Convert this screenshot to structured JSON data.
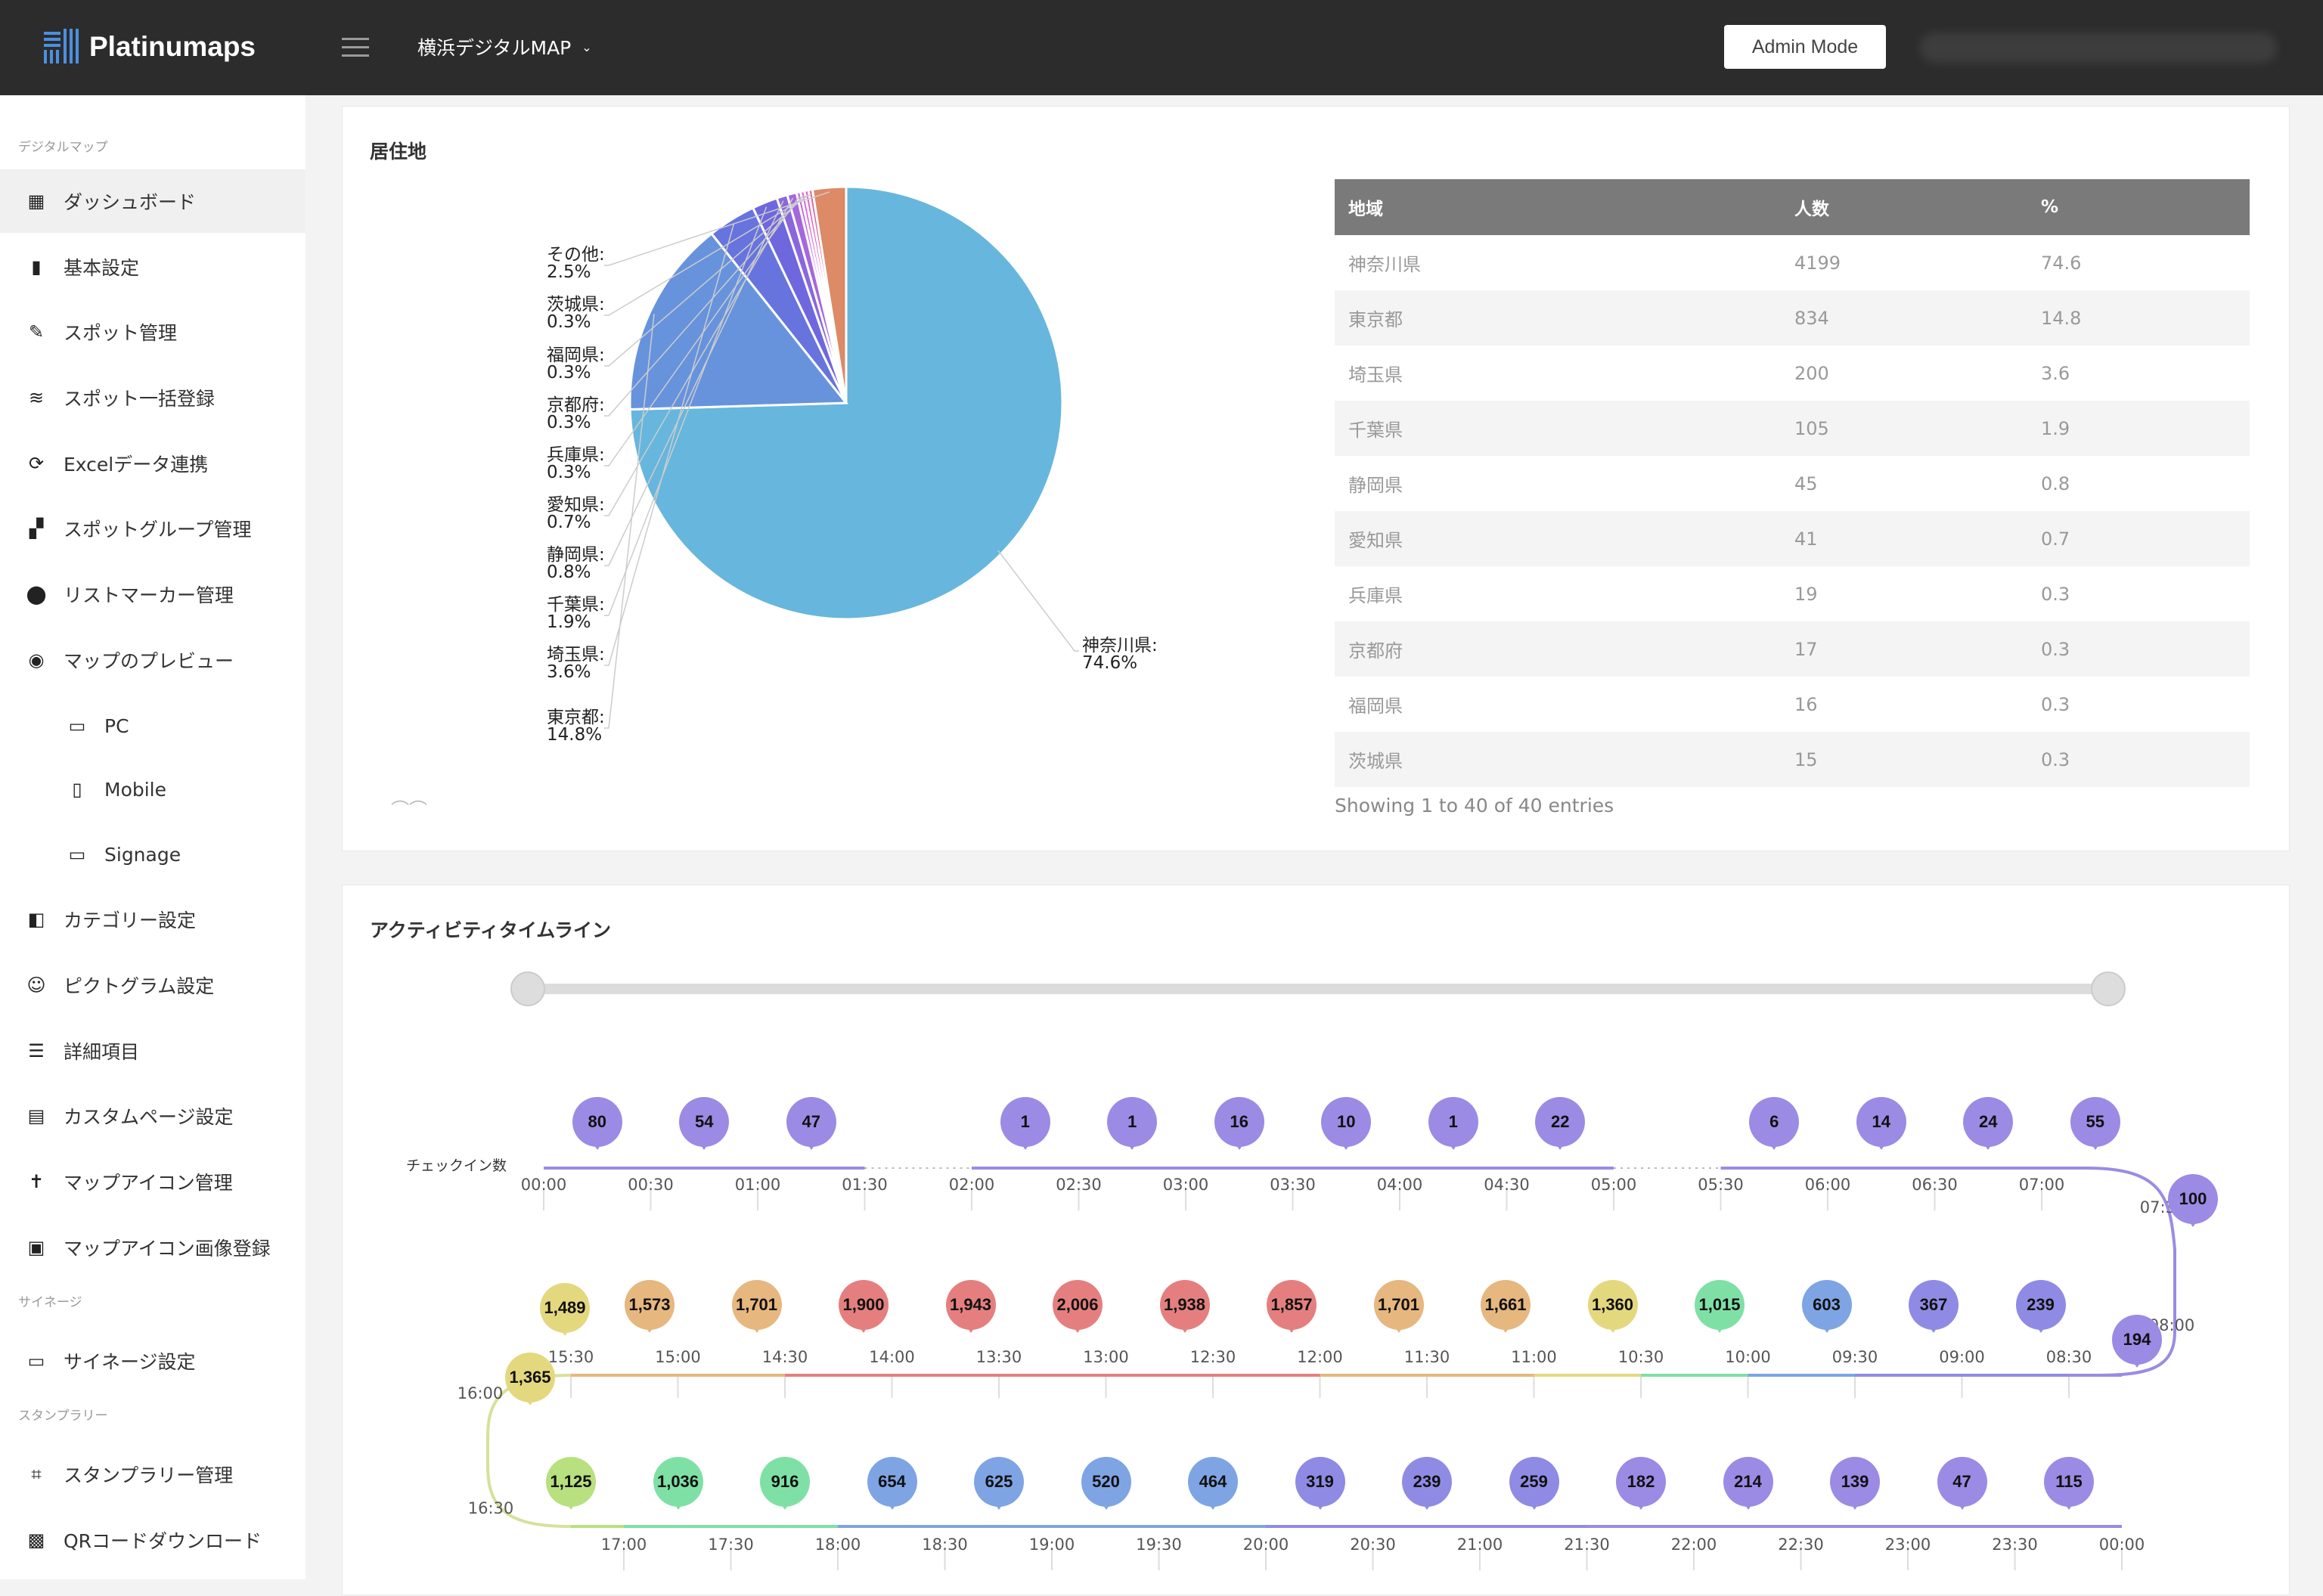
{
  "header": {
    "app_name": "Platinumaps",
    "map_name": "横浜デジタルMAP",
    "admin_button": "Admin Mode"
  },
  "sidebar": {
    "sections": [
      "デジタルマップ",
      "サイネージ",
      "スタンプラリー"
    ],
    "items": [
      {
        "label": "ダッシュボード",
        "icon": "dashboard-icon",
        "glyph": "▦",
        "active": true
      },
      {
        "label": "基本設定",
        "icon": "map-icon",
        "glyph": "▮"
      },
      {
        "label": "スポット管理",
        "icon": "spot-edit-icon",
        "glyph": "✎"
      },
      {
        "label": "スポット一括登録",
        "icon": "layers-icon",
        "glyph": "≋"
      },
      {
        "label": "Excelデータ連携",
        "icon": "sync-icon",
        "glyph": "⟳"
      },
      {
        "label": "スポットグループ管理",
        "icon": "widgets-icon",
        "glyph": "▞"
      },
      {
        "label": "リストマーカー管理",
        "icon": "location-icon",
        "glyph": "⬤"
      },
      {
        "label": "マップのプレビュー",
        "icon": "eye-icon",
        "glyph": "◉"
      },
      {
        "label": "PC",
        "icon": "desktop-icon",
        "glyph": "▭",
        "sub": true
      },
      {
        "label": "Mobile",
        "icon": "mobile-icon",
        "glyph": "▯",
        "sub": true
      },
      {
        "label": "Signage",
        "icon": "monitor-icon",
        "glyph": "▭",
        "sub": true
      },
      {
        "label": "カテゴリー設定",
        "icon": "category-icon",
        "glyph": "◧"
      },
      {
        "label": "ピクトグラム設定",
        "icon": "pictogram-icon",
        "glyph": "☺"
      },
      {
        "label": "詳細項目",
        "icon": "list-icon",
        "glyph": "☰"
      },
      {
        "label": "カスタムページ設定",
        "icon": "page-icon",
        "glyph": "▤"
      },
      {
        "label": "マップアイコン管理",
        "icon": "pin-icon",
        "glyph": "✝"
      },
      {
        "label": "マップアイコン画像登録",
        "icon": "image-icon",
        "glyph": "▣"
      },
      {
        "label": "サイネージ設定",
        "icon": "signage-icon",
        "glyph": "▭"
      },
      {
        "label": "スタンプラリー管理",
        "icon": "stamp-icon",
        "glyph": "⌗"
      },
      {
        "label": "QRコードダウンロード",
        "icon": "qr-icon",
        "glyph": "▩"
      }
    ]
  },
  "residence": {
    "title": "居住地",
    "table_headers": [
      "地域",
      "人数",
      "%"
    ],
    "rows": [
      [
        "神奈川県",
        "4199",
        "74.6"
      ],
      [
        "東京都",
        "834",
        "14.8"
      ],
      [
        "埼玉県",
        "200",
        "3.6"
      ],
      [
        "千葉県",
        "105",
        "1.9"
      ],
      [
        "静岡県",
        "45",
        "0.8"
      ],
      [
        "愛知県",
        "41",
        "0.7"
      ],
      [
        "兵庫県",
        "19",
        "0.3"
      ],
      [
        "京都府",
        "17",
        "0.3"
      ],
      [
        "福岡県",
        "16",
        "0.3"
      ],
      [
        "茨城県",
        "15",
        "0.3"
      ]
    ],
    "table_info": "Showing 1 to 40 of 40 entries"
  },
  "chart_data": {
    "type": "pie",
    "slices": [
      {
        "label": "神奈川県:",
        "pct_label": "74.6%",
        "value": 74.6,
        "color": "#67b6dd"
      },
      {
        "label": "東京都:",
        "pct_label": "14.8%",
        "value": 14.8,
        "color": "#6793dd"
      },
      {
        "label": "埼玉県:",
        "pct_label": "3.6%",
        "value": 3.6,
        "color": "#6774dd"
      },
      {
        "label": "千葉県:",
        "pct_label": "1.9%",
        "value": 1.9,
        "color": "#6f67dd"
      },
      {
        "label": "静岡県:",
        "pct_label": "0.8%",
        "value": 0.8,
        "color": "#8a67dd"
      },
      {
        "label": "愛知県:",
        "pct_label": "0.7%",
        "value": 0.7,
        "color": "#a567dd"
      },
      {
        "label": "兵庫県:",
        "pct_label": "0.3%",
        "value": 0.3,
        "color": "#c067dd"
      },
      {
        "label": "京都府:",
        "pct_label": "0.3%",
        "value": 0.3,
        "color": "#dd67dc"
      },
      {
        "label": "福岡県:",
        "pct_label": "0.3%",
        "value": 0.3,
        "color": "#dd67c1"
      },
      {
        "label": "茨城県:",
        "pct_label": "0.3%",
        "value": 0.3,
        "color": "#dd67a6"
      },
      {
        "label": "その他:",
        "pct_label": "2.5%",
        "value": 2.5,
        "color": "#dd8a67"
      }
    ]
  },
  "activity": {
    "title": "アクティビティタイムライン",
    "checkin_label": "チェックイン数",
    "row1_times": [
      "00:00",
      "00:30",
      "01:00",
      "01:30",
      "02:00",
      "02:30",
      "03:00",
      "03:30",
      "04:00",
      "04:30",
      "05:00",
      "05:30",
      "06:00",
      "06:30",
      "07:00"
    ],
    "row1_pins": [
      [
        "80",
        "#9b8be4"
      ],
      [
        "54",
        "#9b8be4"
      ],
      [
        "47",
        "#9b8be4"
      ],
      [
        "1",
        "#9b8be4"
      ],
      [
        "1",
        "#9b8be4"
      ],
      [
        "16",
        "#9b8be4"
      ],
      [
        "10",
        "#9b8be4"
      ],
      [
        "1",
        "#9b8be4"
      ],
      [
        "22",
        "#9b8be4"
      ],
      [
        "6",
        "#9b8be4"
      ],
      [
        "14",
        "#9b8be4"
      ],
      [
        "24",
        "#9b8be4"
      ],
      [
        "55",
        "#9b8be4"
      ]
    ],
    "row1_pin_slots": [
      0,
      1,
      2,
      4,
      5,
      6,
      7,
      8,
      9,
      11,
      12,
      13,
      14
    ],
    "curve1_times": [
      "07:30",
      "08:00"
    ],
    "curve1_pins": [
      [
        "100",
        "#9b8be4"
      ],
      [
        "194",
        "#9b8be4"
      ]
    ],
    "row2_times": [
      "15:30",
      "15:00",
      "14:30",
      "14:00",
      "13:30",
      "13:00",
      "12:30",
      "12:00",
      "11:30",
      "11:00",
      "10:30",
      "10:00",
      "09:30",
      "09:00",
      "08:30"
    ],
    "row2_pins": [
      [
        "1,573",
        "#e6b77f"
      ],
      [
        "1,701",
        "#e6b77f"
      ],
      [
        "1,900",
        "#e57f7f"
      ],
      [
        "1,943",
        "#e57f7f"
      ],
      [
        "2,006",
        "#e57f7f"
      ],
      [
        "1,938",
        "#e57f7f"
      ],
      [
        "1,857",
        "#e57f7f"
      ],
      [
        "1,701",
        "#e6b77f"
      ],
      [
        "1,661",
        "#e6b77f"
      ],
      [
        "1,360",
        "#e4d87f"
      ],
      [
        "1,015",
        "#7fe0a6"
      ],
      [
        "603",
        "#7fa4e4"
      ],
      [
        "367",
        "#8f8be4"
      ],
      [
        "239",
        "#8f8be4"
      ]
    ],
    "curve2_times": [
      "16:00",
      "16:30"
    ],
    "curve2_pins": [
      [
        "1,489",
        "#e4d87f"
      ],
      [
        "1,365",
        "#e4d87f"
      ]
    ],
    "row3_times": [
      "17:00",
      "17:30",
      "18:00",
      "18:30",
      "19:00",
      "19:30",
      "20:00",
      "20:30",
      "21:00",
      "21:30",
      "22:00",
      "22:30",
      "23:00",
      "23:30",
      "00:00"
    ],
    "row3_pins": [
      [
        "1,125",
        "#b8e07f"
      ],
      [
        "1,036",
        "#7fe0a6"
      ],
      [
        "916",
        "#7fe0a6"
      ],
      [
        "654",
        "#7fa4e4"
      ],
      [
        "625",
        "#7fa4e4"
      ],
      [
        "520",
        "#7fa4e4"
      ],
      [
        "464",
        "#7fa4e4"
      ],
      [
        "319",
        "#8f8be4"
      ],
      [
        "239",
        "#8f8be4"
      ],
      [
        "259",
        "#8f8be4"
      ],
      [
        "182",
        "#9b8be4"
      ],
      [
        "214",
        "#9b8be4"
      ],
      [
        "139",
        "#9b8be4"
      ],
      [
        "47",
        "#9b8be4"
      ],
      [
        "115",
        "#9b8be4"
      ]
    ]
  }
}
